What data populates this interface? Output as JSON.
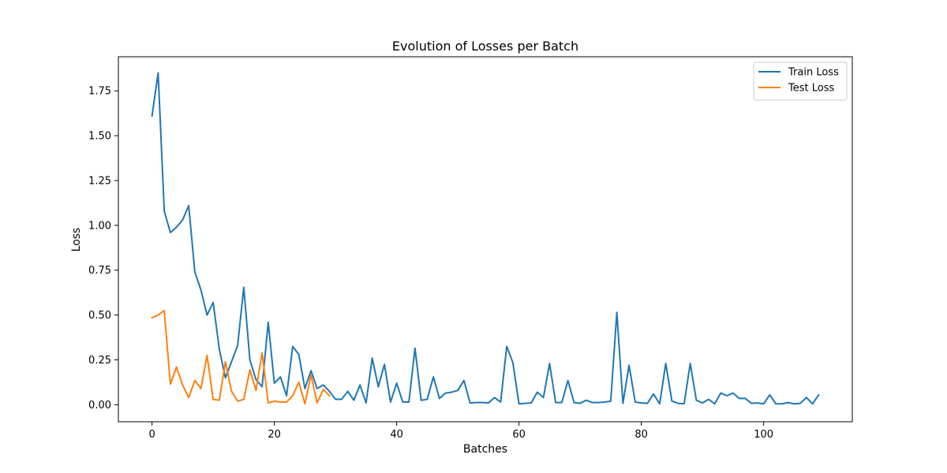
{
  "chart_data": {
    "type": "line",
    "title": "Evolution of Losses per Batch",
    "xlabel": "Batches",
    "ylabel": "Loss",
    "xlim": [
      -5.5,
      114.5
    ],
    "ylim": [
      -0.095,
      1.94
    ],
    "xticks": [
      0,
      20,
      40,
      60,
      80,
      100
    ],
    "xtick_labels": [
      "0",
      "20",
      "40",
      "60",
      "80",
      "100"
    ],
    "yticks": [
      0.0,
      0.25,
      0.5,
      0.75,
      1.0,
      1.25,
      1.5,
      1.75
    ],
    "ytick_labels": [
      "0.00",
      "0.25",
      "0.50",
      "0.75",
      "1.00",
      "1.25",
      "1.50",
      "1.75"
    ],
    "grid": false,
    "legend_position": "top-right",
    "series": [
      {
        "name": "Train Loss",
        "color": "#1f77b4",
        "values": [
          1.61,
          1.85,
          1.08,
          0.96,
          0.99,
          1.03,
          1.11,
          0.74,
          0.64,
          0.5,
          0.57,
          0.31,
          0.15,
          0.24,
          0.33,
          0.655,
          0.25,
          0.14,
          0.1,
          0.46,
          0.12,
          0.155,
          0.05,
          0.325,
          0.28,
          0.09,
          0.19,
          0.09,
          0.11,
          0.075,
          0.03,
          0.03,
          0.075,
          0.025,
          0.11,
          0.01,
          0.26,
          0.1,
          0.225,
          0.015,
          0.12,
          0.015,
          0.015,
          0.315,
          0.025,
          0.03,
          0.155,
          0.035,
          0.065,
          0.07,
          0.08,
          0.135,
          0.01,
          0.012,
          0.012,
          0.01,
          0.04,
          0.015,
          0.325,
          0.235,
          0.005,
          0.008,
          0.01,
          0.07,
          0.04,
          0.23,
          0.012,
          0.012,
          0.135,
          0.012,
          0.008,
          0.025,
          0.012,
          0.012,
          0.015,
          0.02,
          0.515,
          0.008,
          0.22,
          0.015,
          0.01,
          0.008,
          0.06,
          0.005,
          0.23,
          0.02,
          0.008,
          0.005,
          0.23,
          0.025,
          0.01,
          0.03,
          0.005,
          0.065,
          0.05,
          0.065,
          0.035,
          0.035,
          0.008,
          0.01,
          0.005,
          0.055,
          0.005,
          0.005,
          0.012,
          0.005,
          0.008,
          0.04,
          0.005,
          0.055
        ]
      },
      {
        "name": "Test Loss",
        "color": "#ff7f0e",
        "values": [
          0.485,
          0.5,
          0.525,
          0.115,
          0.21,
          0.11,
          0.04,
          0.135,
          0.09,
          0.275,
          0.03,
          0.025,
          0.24,
          0.075,
          0.02,
          0.03,
          0.195,
          0.08,
          0.29,
          0.01,
          0.02,
          0.015,
          0.015,
          0.05,
          0.125,
          0.005,
          0.165,
          0.01,
          0.085,
          0.05
        ]
      }
    ]
  }
}
